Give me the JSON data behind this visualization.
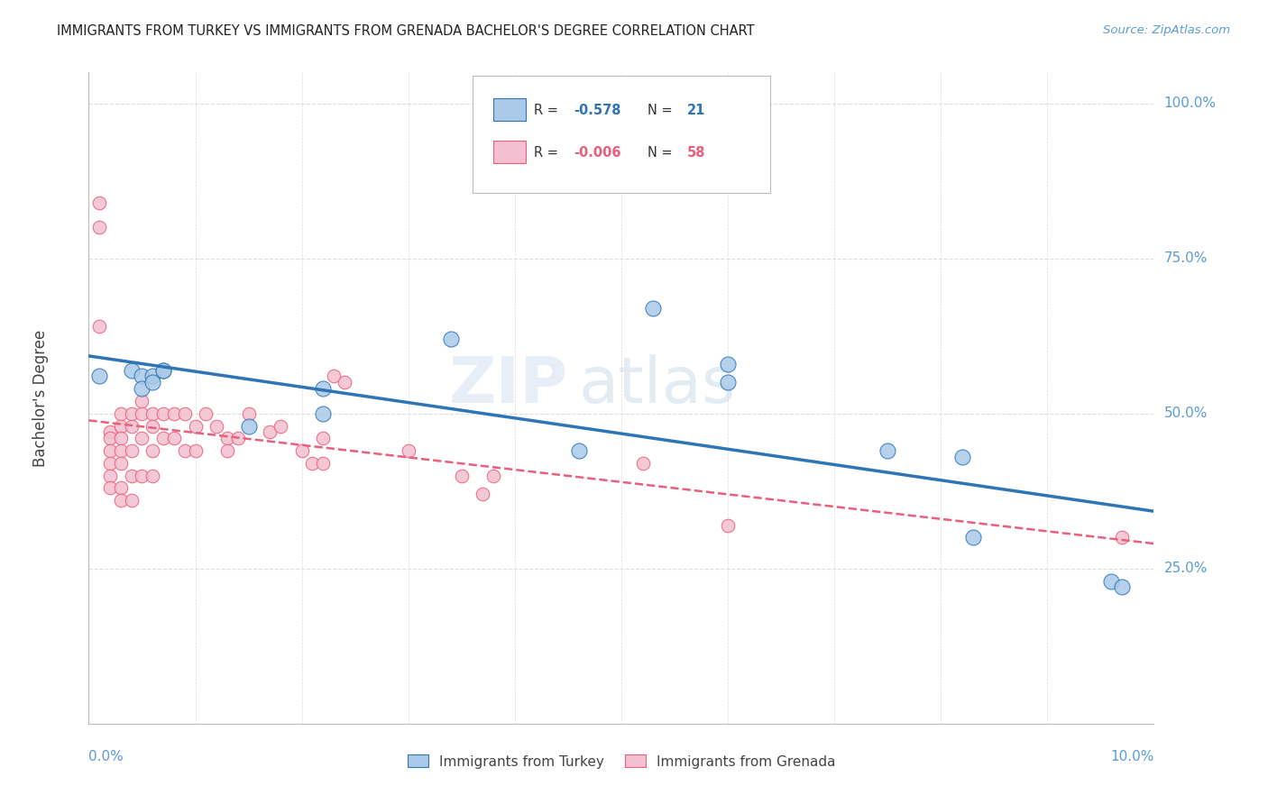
{
  "title": "IMMIGRANTS FROM TURKEY VS IMMIGRANTS FROM GRENADA BACHELOR'S DEGREE CORRELATION CHART",
  "source": "Source: ZipAtlas.com",
  "ylabel": "Bachelor's Degree",
  "xlim": [
    0.0,
    0.1
  ],
  "ylim": [
    0.0,
    1.05
  ],
  "turkey_color": "#aac9e8",
  "turkey_line_color": "#2e75b6",
  "grenada_color": "#f4bfd0",
  "grenada_line_color": "#e8607a",
  "turkey_points_x": [
    0.001,
    0.004,
    0.005,
    0.005,
    0.006,
    0.006,
    0.007,
    0.007,
    0.015,
    0.022,
    0.022,
    0.034,
    0.046,
    0.053,
    0.06,
    0.06,
    0.075,
    0.082,
    0.083,
    0.096,
    0.097
  ],
  "turkey_points_y": [
    0.56,
    0.57,
    0.56,
    0.54,
    0.56,
    0.55,
    0.57,
    0.57,
    0.48,
    0.54,
    0.5,
    0.62,
    0.44,
    0.67,
    0.58,
    0.55,
    0.44,
    0.43,
    0.3,
    0.23,
    0.22
  ],
  "grenada_points_x": [
    0.001,
    0.001,
    0.001,
    0.002,
    0.002,
    0.002,
    0.002,
    0.002,
    0.002,
    0.003,
    0.003,
    0.003,
    0.003,
    0.003,
    0.003,
    0.003,
    0.004,
    0.004,
    0.004,
    0.004,
    0.004,
    0.005,
    0.005,
    0.005,
    0.005,
    0.006,
    0.006,
    0.006,
    0.006,
    0.007,
    0.007,
    0.008,
    0.008,
    0.009,
    0.009,
    0.01,
    0.01,
    0.011,
    0.012,
    0.013,
    0.013,
    0.014,
    0.015,
    0.017,
    0.018,
    0.02,
    0.021,
    0.022,
    0.022,
    0.023,
    0.024,
    0.03,
    0.035,
    0.037,
    0.038,
    0.052,
    0.06,
    0.097
  ],
  "grenada_points_y": [
    0.84,
    0.8,
    0.64,
    0.47,
    0.46,
    0.44,
    0.42,
    0.4,
    0.38,
    0.5,
    0.48,
    0.46,
    0.44,
    0.42,
    0.38,
    0.36,
    0.5,
    0.48,
    0.44,
    0.4,
    0.36,
    0.52,
    0.5,
    0.46,
    0.4,
    0.5,
    0.48,
    0.44,
    0.4,
    0.5,
    0.46,
    0.5,
    0.46,
    0.5,
    0.44,
    0.48,
    0.44,
    0.5,
    0.48,
    0.46,
    0.44,
    0.46,
    0.5,
    0.47,
    0.48,
    0.44,
    0.42,
    0.46,
    0.42,
    0.56,
    0.55,
    0.44,
    0.4,
    0.37,
    0.4,
    0.42,
    0.32,
    0.3
  ],
  "background_color": "#ffffff",
  "grid_color": "#dddddd",
  "watermark": "ZIPatlas"
}
